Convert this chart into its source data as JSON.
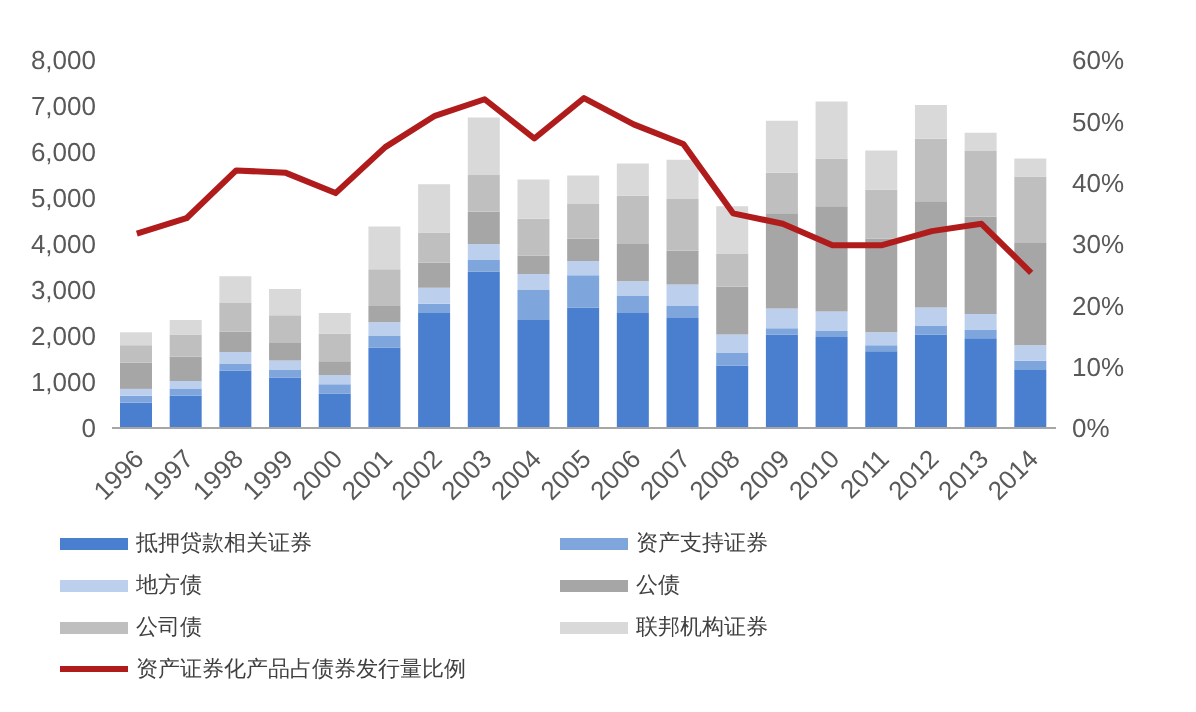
{
  "chart_data": {
    "type": "bar",
    "stacked": true,
    "categories": [
      "1996",
      "1997",
      "1998",
      "1999",
      "2000",
      "2001",
      "2002",
      "2003",
      "2004",
      "2005",
      "2006",
      "2007",
      "2008",
      "2009",
      "2010",
      "2011",
      "2012",
      "2013",
      "2014"
    ],
    "series": [
      {
        "name": "抵押贷款相关证券",
        "color": "#4a7fcf",
        "values": [
          550,
          700,
          1250,
          1100,
          750,
          1750,
          2500,
          3400,
          2350,
          2620,
          2500,
          2390,
          1360,
          2030,
          1980,
          1670,
          2030,
          1950,
          1260
        ]
      },
      {
        "name": "资产支持证券",
        "color": "#7ea6dc",
        "values": [
          150,
          150,
          150,
          170,
          200,
          250,
          200,
          250,
          650,
          700,
          380,
          260,
          280,
          140,
          130,
          130,
          200,
          190,
          200
        ]
      },
      {
        "name": "地方债",
        "color": "#bcd0ee",
        "values": [
          150,
          170,
          250,
          200,
          200,
          300,
          350,
          350,
          350,
          310,
          310,
          470,
          390,
          430,
          420,
          280,
          390,
          340,
          340
        ]
      },
      {
        "name": "公债",
        "color": "#a6a6a6",
        "values": [
          570,
          530,
          450,
          380,
          300,
          350,
          550,
          700,
          400,
          490,
          810,
          740,
          1040,
          2070,
          2290,
          2040,
          2310,
          2110,
          2220
        ]
      },
      {
        "name": "公司债",
        "color": "#bfbfbf",
        "values": [
          380,
          480,
          620,
          600,
          600,
          800,
          650,
          800,
          800,
          750,
          1050,
          1120,
          710,
          880,
          1040,
          1060,
          1360,
          1430,
          1450
        ]
      },
      {
        "name": "联邦机构证券",
        "color": "#d9d9d9",
        "values": [
          280,
          320,
          580,
          570,
          450,
          930,
          1050,
          1250,
          850,
          620,
          700,
          850,
          1040,
          1130,
          1240,
          850,
          730,
          400,
          390
        ]
      },
      {
        "name": "资产证券化产品占债券发行量比例",
        "type": "line",
        "axis": "y2",
        "color": "#b01c1c",
        "values": [
          31.7,
          34.2,
          42,
          41.6,
          38.3,
          45.8,
          50.9,
          53.6,
          47.2,
          53.8,
          49.5,
          46.3,
          35,
          33.3,
          29.8,
          29.8,
          32.1,
          33.3,
          25.3
        ]
      }
    ],
    "ylim": [
      0,
      8000
    ],
    "yticks": [
      {
        "value": 0,
        "label": "0"
      },
      {
        "value": 1000,
        "label": "1,000"
      },
      {
        "value": 2000,
        "label": "2,000"
      },
      {
        "value": 3000,
        "label": "3,000"
      },
      {
        "value": 4000,
        "label": "4,000"
      },
      {
        "value": 5000,
        "label": "5,000"
      },
      {
        "value": 6000,
        "label": "6,000"
      },
      {
        "value": 7000,
        "label": "7,000"
      },
      {
        "value": 8000,
        "label": "8,000"
      }
    ],
    "y2lim": [
      0,
      60
    ],
    "y2ticks": [
      {
        "value": 0,
        "label": "0%"
      },
      {
        "value": 10,
        "label": "10%"
      },
      {
        "value": 20,
        "label": "20%"
      },
      {
        "value": 30,
        "label": "30%"
      },
      {
        "value": 40,
        "label": "40%"
      },
      {
        "value": 50,
        "label": "50%"
      },
      {
        "value": 60,
        "label": "60%"
      }
    ],
    "marker": "none",
    "grid": false,
    "legend": "bottom"
  }
}
